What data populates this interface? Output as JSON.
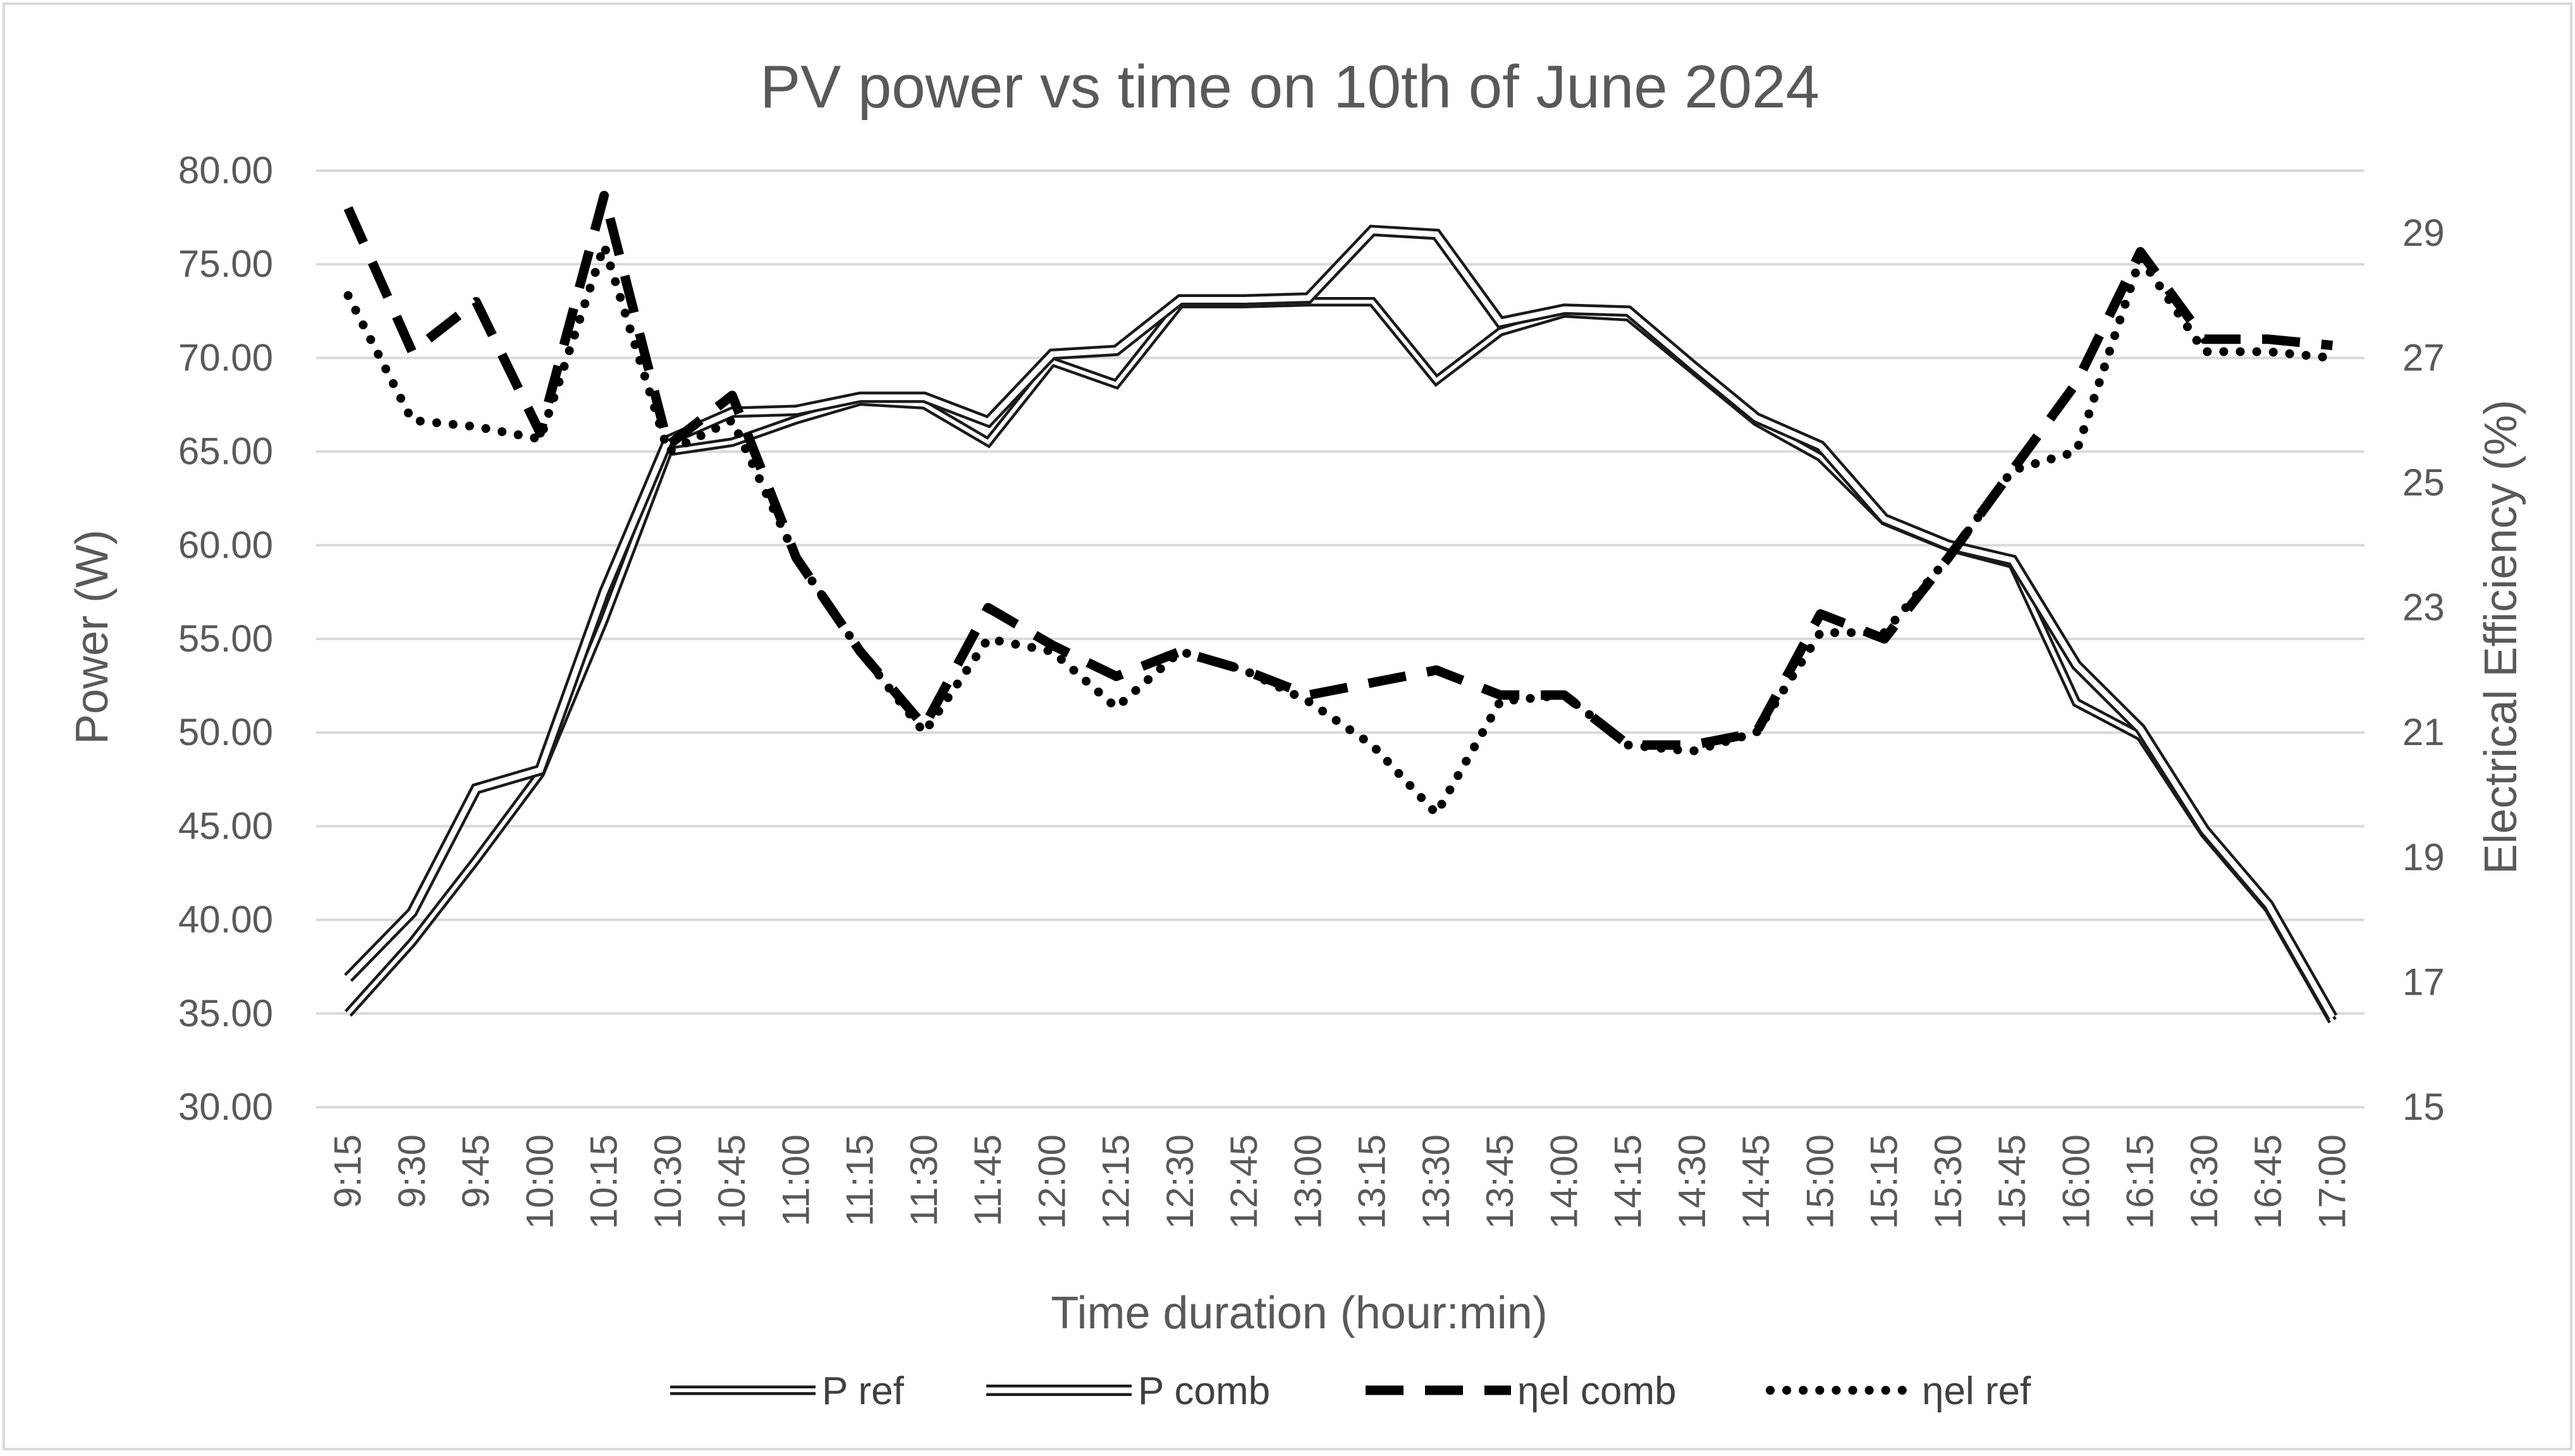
{
  "chart_data": {
    "type": "line",
    "title": "PV power vs time on 10th of June 2024",
    "xlabel": "Time duration (hour:min)",
    "ylabel": "Power (W)",
    "y2label": "Electrical Efficiency (%)",
    "ylim": [
      30,
      80
    ],
    "y2lim": [
      15,
      30
    ],
    "yticks": [
      "30.00",
      "35.00",
      "40.00",
      "45.00",
      "50.00",
      "55.00",
      "60.00",
      "65.00",
      "70.00",
      "75.00",
      "80.00"
    ],
    "y2ticks": [
      "15",
      "17",
      "19",
      "21",
      "23",
      "25",
      "27",
      "29"
    ],
    "categories": [
      "9:15",
      "9:30",
      "9:45",
      "10:00",
      "10:15",
      "10:30",
      "10:45",
      "11:00",
      "11:15",
      "11:30",
      "11:45",
      "12:00",
      "12:15",
      "12:30",
      "12:45",
      "13:00",
      "13:15",
      "13:30",
      "13:45",
      "14:00",
      "14:15",
      "14:30",
      "14:45",
      "15:00",
      "15:15",
      "15:30",
      "15:45",
      "16:00",
      "16:15",
      "16:30",
      "16:45",
      "17:00"
    ],
    "grid": true,
    "legend_position": "bottom",
    "series": [
      {
        "name": "P ref",
        "axis": "left",
        "style": "double-thin",
        "values": [
          35.0,
          38.8,
          43.2,
          47.8,
          56.0,
          65.0,
          65.5,
          66.7,
          67.7,
          67.5,
          65.5,
          69.8,
          68.6,
          72.9,
          72.9,
          73.0,
          73.0,
          68.8,
          71.4,
          72.4,
          72.2,
          69.4,
          66.6,
          64.7,
          61.3,
          59.9,
          59.0,
          51.6,
          49.8,
          44.6,
          40.6,
          34.6
        ]
      },
      {
        "name": "P comb",
        "axis": "left",
        "style": "double",
        "values": [
          36.9,
          40.4,
          47.0,
          48.0,
          57.5,
          65.6,
          67.1,
          67.2,
          67.9,
          67.9,
          66.6,
          70.2,
          70.4,
          73.1,
          73.1,
          73.2,
          76.8,
          76.6,
          71.9,
          72.6,
          72.5,
          69.6,
          66.8,
          65.3,
          61.4,
          60.0,
          59.2,
          53.6,
          50.2,
          44.8,
          40.8,
          34.8
        ]
      },
      {
        "name": "ηel comb",
        "axis": "right",
        "style": "dashed",
        "values": [
          29.4,
          27.1,
          27.9,
          25.8,
          29.6,
          25.6,
          26.4,
          23.8,
          22.3,
          21.1,
          23.0,
          22.4,
          21.9,
          22.3,
          22.0,
          21.6,
          21.8,
          22.0,
          21.6,
          21.6,
          20.8,
          20.8,
          21.0,
          22.9,
          22.5,
          23.8,
          25.2,
          26.6,
          28.7,
          27.3,
          27.3,
          27.2
        ]
      },
      {
        "name": "ηel ref",
        "axis": "right",
        "style": "dotted",
        "values": [
          28.0,
          26.0,
          25.9,
          25.7,
          28.8,
          25.5,
          26.0,
          23.8,
          22.3,
          21.0,
          22.5,
          22.3,
          21.4,
          22.3,
          22.0,
          21.5,
          20.8,
          19.7,
          21.5,
          21.6,
          20.8,
          20.7,
          21.0,
          22.6,
          22.6,
          23.8,
          25.2,
          25.5,
          28.6,
          27.1,
          27.1,
          27.0
        ]
      }
    ]
  }
}
